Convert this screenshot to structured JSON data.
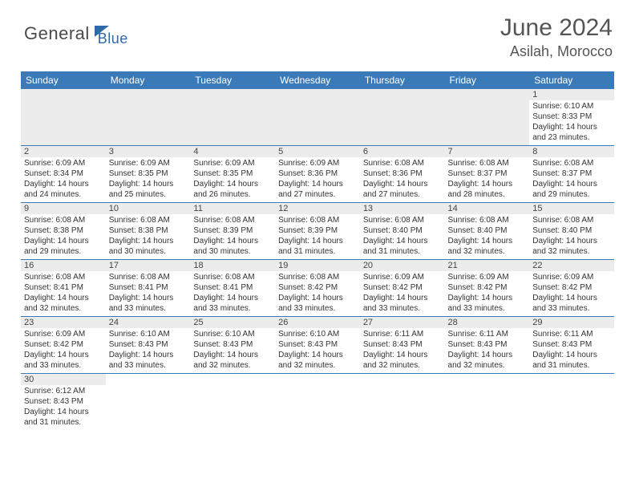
{
  "brand": {
    "part1": "General",
    "part2": "Blue"
  },
  "title": "June 2024",
  "location": "Asilah, Morocco",
  "colors": {
    "header_bg": "#3a7ab8",
    "header_text": "#ffffff",
    "daynum_bg": "#ececec",
    "border": "#3a7ab8",
    "brand_blue": "#2c6aa8",
    "brand_gray": "#4a4a4a"
  },
  "weekdays": [
    "Sunday",
    "Monday",
    "Tuesday",
    "Wednesday",
    "Thursday",
    "Friday",
    "Saturday"
  ],
  "weeks": [
    [
      null,
      null,
      null,
      null,
      null,
      null,
      {
        "n": "1",
        "sr": "Sunrise: 6:10 AM",
        "ss": "Sunset: 8:33 PM",
        "d1": "Daylight: 14 hours",
        "d2": "and 23 minutes."
      }
    ],
    [
      {
        "n": "2",
        "sr": "Sunrise: 6:09 AM",
        "ss": "Sunset: 8:34 PM",
        "d1": "Daylight: 14 hours",
        "d2": "and 24 minutes."
      },
      {
        "n": "3",
        "sr": "Sunrise: 6:09 AM",
        "ss": "Sunset: 8:35 PM",
        "d1": "Daylight: 14 hours",
        "d2": "and 25 minutes."
      },
      {
        "n": "4",
        "sr": "Sunrise: 6:09 AM",
        "ss": "Sunset: 8:35 PM",
        "d1": "Daylight: 14 hours",
        "d2": "and 26 minutes."
      },
      {
        "n": "5",
        "sr": "Sunrise: 6:09 AM",
        "ss": "Sunset: 8:36 PM",
        "d1": "Daylight: 14 hours",
        "d2": "and 27 minutes."
      },
      {
        "n": "6",
        "sr": "Sunrise: 6:08 AM",
        "ss": "Sunset: 8:36 PM",
        "d1": "Daylight: 14 hours",
        "d2": "and 27 minutes."
      },
      {
        "n": "7",
        "sr": "Sunrise: 6:08 AM",
        "ss": "Sunset: 8:37 PM",
        "d1": "Daylight: 14 hours",
        "d2": "and 28 minutes."
      },
      {
        "n": "8",
        "sr": "Sunrise: 6:08 AM",
        "ss": "Sunset: 8:37 PM",
        "d1": "Daylight: 14 hours",
        "d2": "and 29 minutes."
      }
    ],
    [
      {
        "n": "9",
        "sr": "Sunrise: 6:08 AM",
        "ss": "Sunset: 8:38 PM",
        "d1": "Daylight: 14 hours",
        "d2": "and 29 minutes."
      },
      {
        "n": "10",
        "sr": "Sunrise: 6:08 AM",
        "ss": "Sunset: 8:38 PM",
        "d1": "Daylight: 14 hours",
        "d2": "and 30 minutes."
      },
      {
        "n": "11",
        "sr": "Sunrise: 6:08 AM",
        "ss": "Sunset: 8:39 PM",
        "d1": "Daylight: 14 hours",
        "d2": "and 30 minutes."
      },
      {
        "n": "12",
        "sr": "Sunrise: 6:08 AM",
        "ss": "Sunset: 8:39 PM",
        "d1": "Daylight: 14 hours",
        "d2": "and 31 minutes."
      },
      {
        "n": "13",
        "sr": "Sunrise: 6:08 AM",
        "ss": "Sunset: 8:40 PM",
        "d1": "Daylight: 14 hours",
        "d2": "and 31 minutes."
      },
      {
        "n": "14",
        "sr": "Sunrise: 6:08 AM",
        "ss": "Sunset: 8:40 PM",
        "d1": "Daylight: 14 hours",
        "d2": "and 32 minutes."
      },
      {
        "n": "15",
        "sr": "Sunrise: 6:08 AM",
        "ss": "Sunset: 8:40 PM",
        "d1": "Daylight: 14 hours",
        "d2": "and 32 minutes."
      }
    ],
    [
      {
        "n": "16",
        "sr": "Sunrise: 6:08 AM",
        "ss": "Sunset: 8:41 PM",
        "d1": "Daylight: 14 hours",
        "d2": "and 32 minutes."
      },
      {
        "n": "17",
        "sr": "Sunrise: 6:08 AM",
        "ss": "Sunset: 8:41 PM",
        "d1": "Daylight: 14 hours",
        "d2": "and 33 minutes."
      },
      {
        "n": "18",
        "sr": "Sunrise: 6:08 AM",
        "ss": "Sunset: 8:41 PM",
        "d1": "Daylight: 14 hours",
        "d2": "and 33 minutes."
      },
      {
        "n": "19",
        "sr": "Sunrise: 6:08 AM",
        "ss": "Sunset: 8:42 PM",
        "d1": "Daylight: 14 hours",
        "d2": "and 33 minutes."
      },
      {
        "n": "20",
        "sr": "Sunrise: 6:09 AM",
        "ss": "Sunset: 8:42 PM",
        "d1": "Daylight: 14 hours",
        "d2": "and 33 minutes."
      },
      {
        "n": "21",
        "sr": "Sunrise: 6:09 AM",
        "ss": "Sunset: 8:42 PM",
        "d1": "Daylight: 14 hours",
        "d2": "and 33 minutes."
      },
      {
        "n": "22",
        "sr": "Sunrise: 6:09 AM",
        "ss": "Sunset: 8:42 PM",
        "d1": "Daylight: 14 hours",
        "d2": "and 33 minutes."
      }
    ],
    [
      {
        "n": "23",
        "sr": "Sunrise: 6:09 AM",
        "ss": "Sunset: 8:42 PM",
        "d1": "Daylight: 14 hours",
        "d2": "and 33 minutes."
      },
      {
        "n": "24",
        "sr": "Sunrise: 6:10 AM",
        "ss": "Sunset: 8:43 PM",
        "d1": "Daylight: 14 hours",
        "d2": "and 33 minutes."
      },
      {
        "n": "25",
        "sr": "Sunrise: 6:10 AM",
        "ss": "Sunset: 8:43 PM",
        "d1": "Daylight: 14 hours",
        "d2": "and 32 minutes."
      },
      {
        "n": "26",
        "sr": "Sunrise: 6:10 AM",
        "ss": "Sunset: 8:43 PM",
        "d1": "Daylight: 14 hours",
        "d2": "and 32 minutes."
      },
      {
        "n": "27",
        "sr": "Sunrise: 6:11 AM",
        "ss": "Sunset: 8:43 PM",
        "d1": "Daylight: 14 hours",
        "d2": "and 32 minutes."
      },
      {
        "n": "28",
        "sr": "Sunrise: 6:11 AM",
        "ss": "Sunset: 8:43 PM",
        "d1": "Daylight: 14 hours",
        "d2": "and 32 minutes."
      },
      {
        "n": "29",
        "sr": "Sunrise: 6:11 AM",
        "ss": "Sunset: 8:43 PM",
        "d1": "Daylight: 14 hours",
        "d2": "and 31 minutes."
      }
    ],
    [
      {
        "n": "30",
        "sr": "Sunrise: 6:12 AM",
        "ss": "Sunset: 8:43 PM",
        "d1": "Daylight: 14 hours",
        "d2": "and 31 minutes."
      },
      null,
      null,
      null,
      null,
      null,
      null
    ]
  ]
}
